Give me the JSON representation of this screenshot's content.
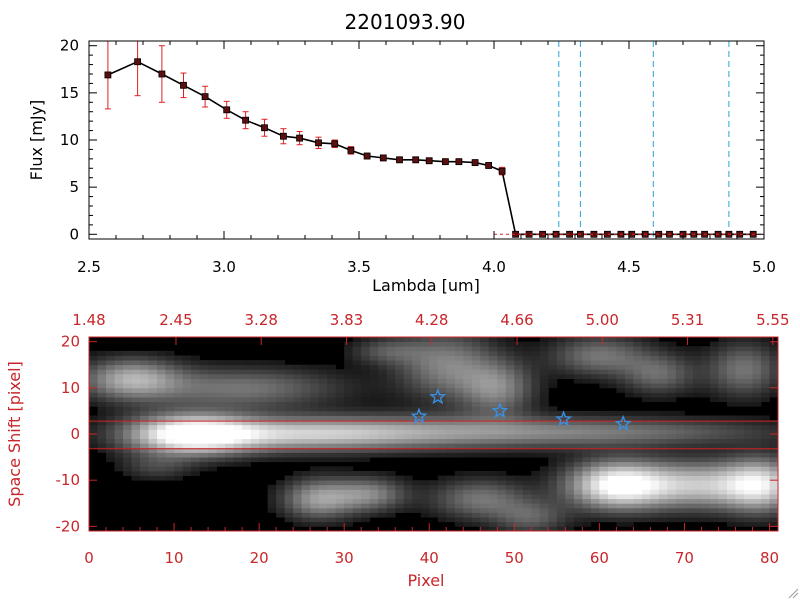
{
  "title": "2201093.90",
  "colors": {
    "axis_black": "#000000",
    "axis_red": "#c8262a",
    "error_bar": "#e02020",
    "marker": "#5a1010",
    "dashed_line": "#2aa4d8",
    "star": "#3a8fe0",
    "center_lines": "#d02020"
  },
  "chart_data": [
    {
      "type": "line",
      "title": "2201093.90",
      "xlabel": "Lambda [um]",
      "ylabel": "Flux [mJy]",
      "xlim": [
        2.5,
        5.0
      ],
      "ylim": [
        -0.5,
        20.5
      ],
      "x_ticks": [
        "2.5",
        "3.0",
        "3.5",
        "4.0",
        "4.5",
        "5.0"
      ],
      "y_ticks": [
        "0",
        "5",
        "10",
        "15",
        "20"
      ],
      "grid": false,
      "series": [
        {
          "x": [
            2.57,
            2.68,
            2.77,
            2.85,
            2.93,
            3.01,
            3.08,
            3.15,
            3.22,
            3.28,
            3.35,
            3.41,
            3.47,
            3.53,
            3.59,
            3.65,
            3.71,
            3.76,
            3.82,
            3.87,
            3.93,
            3.98,
            4.03,
            4.08,
            4.13,
            4.18,
            4.23,
            4.28,
            4.32,
            4.37,
            4.42,
            4.47,
            4.51,
            4.56,
            4.61,
            4.65,
            4.7,
            4.74,
            4.78,
            4.83,
            4.87,
            4.91,
            4.96
          ],
          "y": [
            16.9,
            18.3,
            17.0,
            15.8,
            14.6,
            13.2,
            12.1,
            11.3,
            10.4,
            10.2,
            9.7,
            9.6,
            8.9,
            8.3,
            8.1,
            7.9,
            7.9,
            7.8,
            7.7,
            7.7,
            7.6,
            7.3,
            6.7,
            0,
            0,
            0,
            0,
            0,
            0,
            0,
            0,
            0,
            0,
            0,
            0,
            0,
            0,
            0,
            0,
            0,
            0,
            0,
            0
          ],
          "yerr": [
            3.6,
            3.6,
            3.0,
            1.3,
            1.1,
            0.9,
            0.9,
            0.9,
            0.8,
            0.7,
            0.6,
            0.4,
            0.4,
            0.3,
            0.3,
            0.3,
            0.3,
            0.3,
            0.3,
            0.3,
            0.3,
            0.3,
            0.4,
            0,
            0,
            0,
            0,
            0,
            0,
            0,
            0,
            0,
            0,
            0,
            0,
            0,
            0,
            0,
            0,
            0,
            0,
            0,
            0
          ]
        }
      ],
      "vertical_dashed_lines_x": [
        4.24,
        4.32,
        4.59,
        4.87
      ]
    },
    {
      "type": "heatmap",
      "xlabel": "Pixel",
      "ylabel": "Space Shift [pixel]",
      "xlim": [
        0,
        81
      ],
      "ylim": [
        -21,
        21
      ],
      "x_ticks": [
        "0",
        "10",
        "20",
        "30",
        "40",
        "50",
        "60",
        "70",
        "80"
      ],
      "y_ticks": [
        "-20",
        "-10",
        "0",
        "10",
        "20"
      ],
      "top_axis_ticks": [
        "1.48",
        "2.45",
        "3.28",
        "3.83",
        "4.28",
        "4.66",
        "5.00",
        "5.31",
        "5.55"
      ],
      "horizontal_lines_y": [
        2.8,
        -3.2
      ],
      "star_markers": [
        {
          "x": 38.8,
          "y": 3.8
        },
        {
          "x": 41.0,
          "y": 8.0
        },
        {
          "x": 48.3,
          "y": 5.0
        },
        {
          "x": 55.8,
          "y": 3.2
        },
        {
          "x": 62.8,
          "y": 2.2
        }
      ],
      "blobs": [
        {
          "x": 12,
          "y": 0,
          "sx": 5,
          "sy": 3,
          "v": 1.0
        },
        {
          "x": 24,
          "y": 0,
          "sx": 10,
          "sy": 2.5,
          "v": 0.55
        },
        {
          "x": 42,
          "y": 0.5,
          "sx": 15,
          "sy": 2.5,
          "v": 0.45
        },
        {
          "x": 66,
          "y": 0.5,
          "sx": 12,
          "sy": 2,
          "v": 0.25
        },
        {
          "x": 62,
          "y": -11,
          "sx": 4,
          "sy": 3.5,
          "v": 0.95
        },
        {
          "x": 72,
          "y": -11,
          "sx": 6,
          "sy": 3.5,
          "v": 0.7
        },
        {
          "x": 79,
          "y": -11,
          "sx": 3,
          "sy": 4,
          "v": 0.65
        },
        {
          "x": 27,
          "y": -14,
          "sx": 3,
          "sy": 3,
          "v": 0.55
        },
        {
          "x": 33,
          "y": -13,
          "sx": 3,
          "sy": 2.5,
          "v": 0.45
        },
        {
          "x": 46,
          "y": -14,
          "sx": 4,
          "sy": 3,
          "v": 0.4
        },
        {
          "x": 52,
          "y": -18,
          "sx": 3,
          "sy": 2.5,
          "v": 0.3
        },
        {
          "x": 5,
          "y": 12,
          "sx": 4,
          "sy": 3,
          "v": 0.6
        },
        {
          "x": 18,
          "y": 10,
          "sx": 8,
          "sy": 3,
          "v": 0.4
        },
        {
          "x": 42,
          "y": 15,
          "sx": 4,
          "sy": 5,
          "v": 0.45
        },
        {
          "x": 48,
          "y": 10,
          "sx": 3,
          "sy": 4,
          "v": 0.45
        },
        {
          "x": 60,
          "y": 17,
          "sx": 4,
          "sy": 3,
          "v": 0.4
        },
        {
          "x": 67,
          "y": 13,
          "sx": 3,
          "sy": 3,
          "v": 0.35
        },
        {
          "x": 77,
          "y": 14,
          "sx": 3,
          "sy": 4,
          "v": 0.4
        },
        {
          "x": 35,
          "y": 18,
          "sx": 3,
          "sy": 2,
          "v": 0.25
        },
        {
          "x": 8,
          "y": -7,
          "sx": 3,
          "sy": 2,
          "v": 0.2
        }
      ]
    }
  ]
}
